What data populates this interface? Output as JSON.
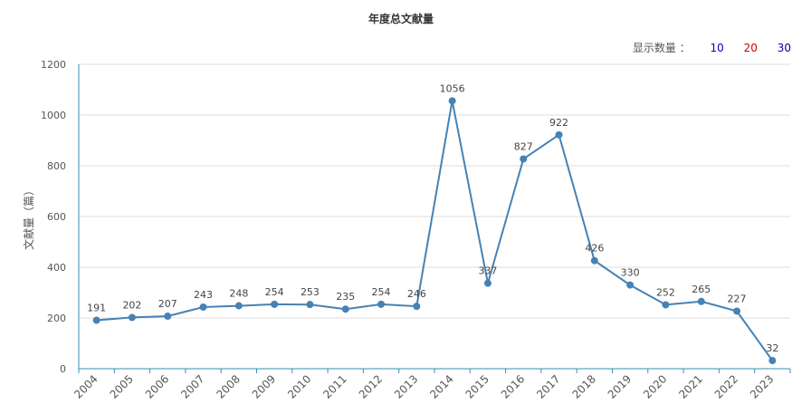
{
  "colors": {
    "line": "#4682b4",
    "axis": "#3a8fb5",
    "grid": "#dcdcdc",
    "opt_10": "#0000cc",
    "opt_20": "#cc0000",
    "opt_30": "#000099"
  },
  "display_count": {
    "label": "显示数量 ：",
    "options": [
      "10",
      "20",
      "30"
    ]
  },
  "chart_data": {
    "type": "line",
    "title": "年度总文献量",
    "xlabel": "",
    "ylabel": "文献量（篇）",
    "ylim": [
      0,
      1200
    ],
    "yticks": [
      0,
      200,
      400,
      600,
      800,
      1000,
      1200
    ],
    "grid": true,
    "categories": [
      "2004",
      "2005",
      "2006",
      "2007",
      "2008",
      "2009",
      "2010",
      "2011",
      "2012",
      "2013",
      "2014",
      "2015",
      "2016",
      "2017",
      "2018",
      "2019",
      "2020",
      "2021",
      "2022",
      "2023"
    ],
    "values": [
      191,
      202,
      207,
      243,
      248,
      254,
      253,
      235,
      254,
      246,
      1056,
      337,
      827,
      922,
      426,
      330,
      252,
      265,
      227,
      32
    ]
  }
}
